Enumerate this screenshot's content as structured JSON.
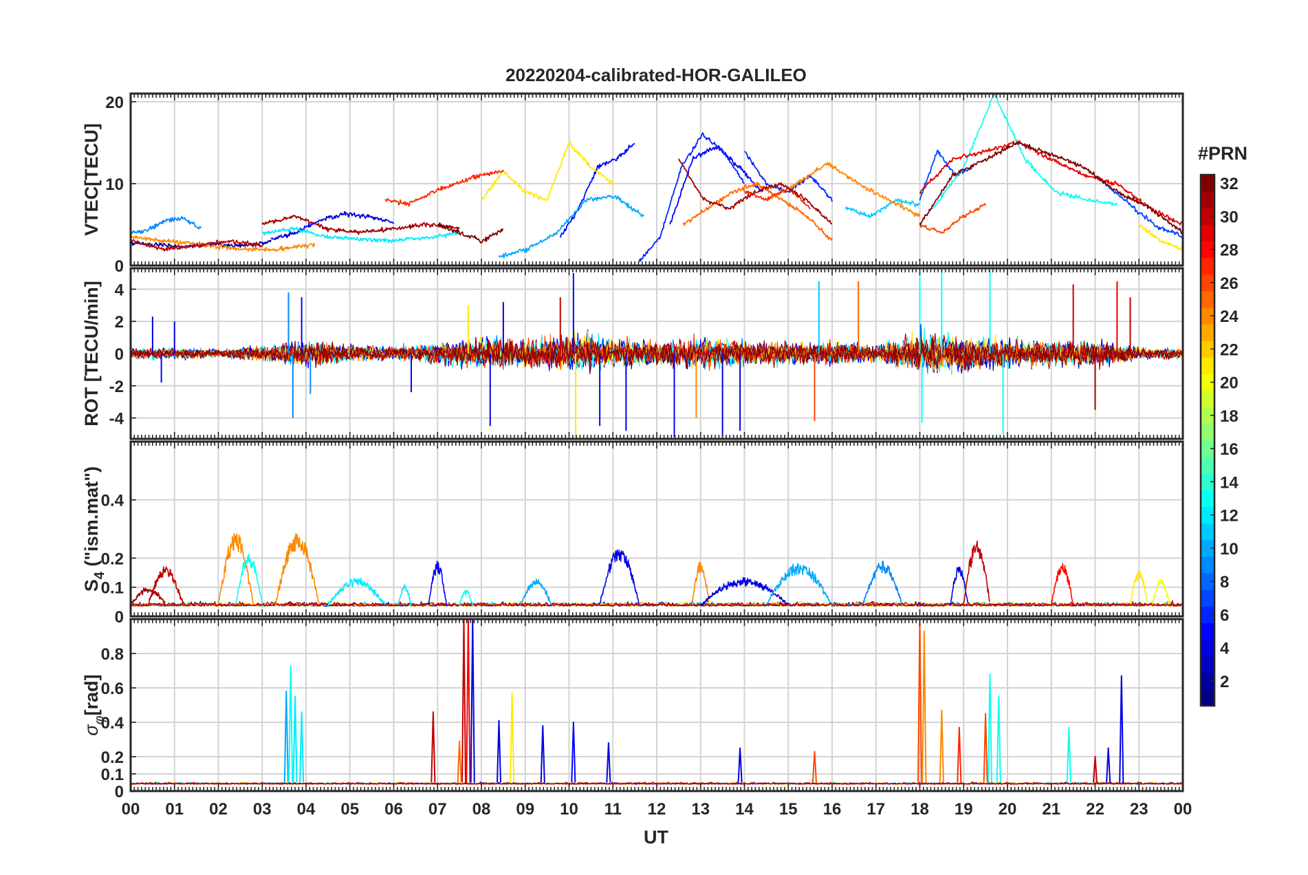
{
  "figure": {
    "title": "20220204-calibrated-HOR-GALILEO",
    "xlabel": "UT"
  },
  "chart_data": [
    {
      "type": "line",
      "id": "vtec",
      "ylabel": "VTEC[TECU]",
      "ylim": [
        0,
        21
      ],
      "yticks": [
        0,
        10,
        20
      ],
      "xlim": [
        0,
        24
      ],
      "xtick_labels": [
        "00",
        "01",
        "02",
        "03",
        "04",
        "05",
        "06",
        "07",
        "08",
        "09",
        "10",
        "11",
        "12",
        "13",
        "14",
        "15",
        "16",
        "17",
        "18",
        "19",
        "20",
        "21",
        "22",
        "23",
        "00"
      ],
      "color_by": "PRN",
      "series": [
        {
          "name": "PRN 2",
          "prn": 2,
          "start": 0.0,
          "end": 3.2,
          "values": [
            2.8,
            2.5,
            2.3,
            2.6,
            2.4,
            2.9
          ]
        },
        {
          "name": "PRN 4",
          "prn": 4,
          "start": 3.2,
          "end": 6.0,
          "values": [
            3.2,
            4.0,
            5.5,
            6.3,
            6.0,
            5.2
          ]
        },
        {
          "name": "PRN 5",
          "prn": 5,
          "start": 9.8,
          "end": 11.5,
          "values": [
            3.5,
            7.0,
            12.0,
            13.0,
            15.0
          ]
        },
        {
          "name": "PRN 5",
          "prn": 5,
          "start": 12.3,
          "end": 14.4,
          "values": [
            5.0,
            13.0,
            14.5,
            12.0,
            9.0
          ]
        },
        {
          "name": "PRN 6",
          "prn": 6,
          "start": 11.6,
          "end": 14.0,
          "values": [
            0.5,
            3.5,
            12.0,
            16.0,
            14.0,
            10.0
          ]
        },
        {
          "name": "PRN 6",
          "prn": 6,
          "start": 14.0,
          "end": 16.0,
          "values": [
            14.0,
            10.0,
            9.0,
            11.0,
            8.0
          ]
        },
        {
          "name": "PRN 7",
          "prn": 7,
          "start": 18.0,
          "end": 19.2,
          "values": [
            8.0,
            14.0,
            11.0,
            12.0
          ]
        },
        {
          "name": "PRN 7",
          "prn": 7,
          "start": 22.0,
          "end": 24.0,
          "values": [
            11.0,
            8.0,
            5.0,
            3.5
          ]
        },
        {
          "name": "PRN 9",
          "prn": 9,
          "start": 0.0,
          "end": 1.6,
          "values": [
            4.0,
            4.3,
            5.5,
            5.8,
            4.5
          ]
        },
        {
          "name": "PRN 10",
          "prn": 10,
          "start": 8.4,
          "end": 11.7,
          "values": [
            1.0,
            2.0,
            4.0,
            8.0,
            8.5,
            6.0
          ]
        },
        {
          "name": "PRN 11",
          "prn": 11,
          "start": 16.3,
          "end": 18.0,
          "values": [
            7.0,
            6.0,
            8.0,
            7.5
          ]
        },
        {
          "name": "PRN 12",
          "prn": 12,
          "start": 3.0,
          "end": 7.5,
          "values": [
            4.0,
            4.5,
            3.5,
            3.2,
            3.0,
            3.4,
            4.0
          ]
        },
        {
          "name": "PRN 13",
          "prn": 13,
          "start": 18.3,
          "end": 22.5,
          "values": [
            7.0,
            12.0,
            21.0,
            13.0,
            9.0,
            8.0,
            7.5
          ]
        },
        {
          "name": "PRN 21",
          "prn": 21,
          "start": 8.0,
          "end": 11.0,
          "values": [
            8.0,
            11.5,
            9.0,
            8.0,
            15.0,
            12.0,
            10.0
          ]
        },
        {
          "name": "PRN 21",
          "prn": 21,
          "start": 23.0,
          "end": 24.0,
          "values": [
            5.0,
            3.0,
            2.0
          ]
        },
        {
          "name": "PRN 24",
          "prn": 24,
          "start": 0.0,
          "end": 4.2,
          "values": [
            3.5,
            3.0,
            2.5,
            2.0,
            2.0,
            2.5
          ]
        },
        {
          "name": "PRN 24",
          "prn": 24,
          "start": 14.5,
          "end": 18.0,
          "values": [
            8.0,
            10.0,
            12.5,
            10.0,
            8.0,
            6.0
          ]
        },
        {
          "name": "PRN 25",
          "prn": 25,
          "start": 12.6,
          "end": 16.0,
          "values": [
            5.0,
            7.0,
            9.0,
            10.0,
            8.0,
            6.0,
            3.0
          ]
        },
        {
          "name": "PRN 26",
          "prn": 26,
          "start": 18.0,
          "end": 19.5,
          "values": [
            5.0,
            4.0,
            6.0,
            7.5
          ]
        },
        {
          "name": "PRN 27",
          "prn": 27,
          "start": 5.8,
          "end": 8.5,
          "values": [
            8.0,
            7.5,
            9.0,
            10.0,
            11.0,
            11.5
          ]
        },
        {
          "name": "PRN 27",
          "prn": 27,
          "start": 14.0,
          "end": 15.5,
          "values": [
            9.0,
            8.0,
            9.5,
            7.0
          ]
        },
        {
          "name": "PRN 29",
          "prn": 29,
          "start": 18.0,
          "end": 24.0,
          "values": [
            9.0,
            13.0,
            14.0,
            15.0,
            13.0,
            11.0,
            10.0,
            7.0,
            5.0
          ]
        },
        {
          "name": "PRN 30",
          "prn": 30,
          "start": 0.0,
          "end": 3.0,
          "values": [
            3.0,
            2.0,
            2.4,
            3.0,
            2.5
          ]
        },
        {
          "name": "PRN 31",
          "prn": 31,
          "start": 3.0,
          "end": 7.5,
          "values": [
            5.0,
            6.0,
            4.5,
            4.0,
            4.5,
            5.0,
            4.5
          ]
        },
        {
          "name": "PRN 31",
          "prn": 31,
          "start": 12.5,
          "end": 16.0,
          "values": [
            13.0,
            8.0,
            7.0,
            9.0,
            10.0,
            8.0,
            5.0
          ]
        },
        {
          "name": "PRN 32",
          "prn": 32,
          "start": 7.0,
          "end": 8.5,
          "values": [
            5.0,
            4.0,
            3.0,
            4.5
          ]
        },
        {
          "name": "PRN 32",
          "prn": 32,
          "start": 18.0,
          "end": 24.0,
          "values": [
            5.0,
            11.0,
            13.0,
            15.0,
            13.5,
            12.0,
            9.0,
            7.0,
            4.0
          ]
        }
      ]
    },
    {
      "type": "line",
      "id": "rot",
      "ylabel": "ROT [TECU/min]",
      "ylim": [
        -5.3,
        5.3
      ],
      "yticks": [
        -4,
        -2,
        0,
        2,
        4
      ],
      "xlim": [
        0,
        24
      ],
      "color_by": "PRN",
      "note": "dense per-epoch noise around 0; typical |ROT| envelope by hour",
      "envelope_by_hour": [
        0.6,
        0.7,
        0.5,
        0.9,
        1.6,
        1.0,
        0.9,
        1.2,
        1.8,
        1.7,
        2.2,
        1.8,
        1.5,
        1.8,
        1.5,
        1.3,
        1.4,
        0.9,
        2.5,
        2.0,
        1.8,
        1.5,
        1.6,
        0.7,
        0.6
      ],
      "spikes": [
        {
          "x": 0.5,
          "value": 2.3,
          "prn": 4
        },
        {
          "x": 0.7,
          "value": -1.8,
          "prn": 5
        },
        {
          "x": 1.0,
          "value": 2.0,
          "prn": 4
        },
        {
          "x": 3.6,
          "value": 3.8,
          "prn": 9
        },
        {
          "x": 3.7,
          "value": -4.0,
          "prn": 9
        },
        {
          "x": 3.9,
          "value": 3.5,
          "prn": 5
        },
        {
          "x": 4.1,
          "value": -2.5,
          "prn": 9
        },
        {
          "x": 6.4,
          "value": -2.4,
          "prn": 5
        },
        {
          "x": 7.7,
          "value": 3.0,
          "prn": 21
        },
        {
          "x": 8.2,
          "value": -4.5,
          "prn": 4
        },
        {
          "x": 8.5,
          "value": 3.2,
          "prn": 4
        },
        {
          "x": 9.8,
          "value": 3.5,
          "prn": 30
        },
        {
          "x": 10.1,
          "value": 5.0,
          "prn": 5
        },
        {
          "x": 10.15,
          "value": -5.2,
          "prn": 21
        },
        {
          "x": 10.7,
          "value": -4.5,
          "prn": 5
        },
        {
          "x": 11.3,
          "value": -4.8,
          "prn": 4
        },
        {
          "x": 12.4,
          "value": -5.2,
          "prn": 5
        },
        {
          "x": 12.9,
          "value": -4.0,
          "prn": 24
        },
        {
          "x": 13.5,
          "value": -5.2,
          "prn": 4
        },
        {
          "x": 13.9,
          "value": -4.8,
          "prn": 4
        },
        {
          "x": 15.6,
          "value": -4.2,
          "prn": 26
        },
        {
          "x": 15.7,
          "value": 4.5,
          "prn": 11
        },
        {
          "x": 16.6,
          "value": 4.5,
          "prn": 25
        },
        {
          "x": 18.0,
          "value": 5.2,
          "prn": 13
        },
        {
          "x": 18.05,
          "value": -4.3,
          "prn": 13
        },
        {
          "x": 18.5,
          "value": 5.2,
          "prn": 13
        },
        {
          "x": 19.6,
          "value": 5.2,
          "prn": 13
        },
        {
          "x": 19.9,
          "value": -5.0,
          "prn": 13
        },
        {
          "x": 21.5,
          "value": 4.3,
          "prn": 30
        },
        {
          "x": 22.0,
          "value": -3.5,
          "prn": 31
        },
        {
          "x": 22.5,
          "value": 4.5,
          "prn": 29
        },
        {
          "x": 22.8,
          "value": 3.5,
          "prn": 30
        }
      ]
    },
    {
      "type": "line",
      "id": "s4",
      "ylabel": "S4 (\"ism.mat\")",
      "ylim": [
        0,
        0.6
      ],
      "yticks": [
        0,
        0.1,
        0.2,
        0.4
      ],
      "ytick_labels": [
        "0",
        "0.1",
        "0.2",
        "0.4"
      ],
      "xlim": [
        0,
        24
      ],
      "color_by": "PRN",
      "note": "baseline around 0.02-0.05; bumps listed as [start_hr, end_hr, peak, prn]",
      "bumps": [
        [
          0.4,
          1.2,
          0.17,
          30
        ],
        [
          0.0,
          0.8,
          0.1,
          31
        ],
        [
          2.0,
          2.8,
          0.29,
          24
        ],
        [
          2.4,
          3.0,
          0.22,
          13
        ],
        [
          3.3,
          4.3,
          0.29,
          24
        ],
        [
          4.5,
          5.8,
          0.13,
          12
        ],
        [
          6.1,
          6.4,
          0.11,
          12
        ],
        [
          6.8,
          7.2,
          0.19,
          5
        ],
        [
          7.5,
          7.8,
          0.09,
          13
        ],
        [
          8.9,
          9.6,
          0.13,
          10
        ],
        [
          10.7,
          11.6,
          0.24,
          4
        ],
        [
          12.8,
          13.2,
          0.19,
          24
        ],
        [
          13.0,
          15.0,
          0.13,
          4
        ],
        [
          14.5,
          16.0,
          0.18,
          10
        ],
        [
          16.7,
          17.6,
          0.19,
          9
        ],
        [
          18.7,
          19.1,
          0.18,
          4
        ],
        [
          19.0,
          19.6,
          0.27,
          30
        ],
        [
          21.0,
          21.5,
          0.19,
          28
        ],
        [
          22.8,
          23.2,
          0.16,
          21
        ],
        [
          23.3,
          23.7,
          0.13,
          20
        ]
      ]
    },
    {
      "type": "line",
      "id": "sigma_phi",
      "ylabel": "σ_φ [rad]",
      "ylim": [
        0,
        1.0
      ],
      "yticks": [
        0,
        0.1,
        0.2,
        0.4,
        0.6,
        0.8
      ],
      "ytick_labels": [
        "0",
        "0.1",
        "0.2",
        "0.4",
        "0.6",
        "0.8"
      ],
      "xlim": [
        0,
        24
      ],
      "color_by": "PRN",
      "note": "baseline around 0.03-0.05; spikes as [x_hr, peak, prn]",
      "spikes": [
        [
          3.55,
          0.58,
          10
        ],
        [
          3.65,
          0.73,
          13
        ],
        [
          3.75,
          0.55,
          12
        ],
        [
          3.9,
          0.46,
          12
        ],
        [
          6.9,
          0.46,
          30
        ],
        [
          7.6,
          1.0,
          30
        ],
        [
          7.7,
          1.0,
          28
        ],
        [
          7.8,
          1.0,
          4
        ],
        [
          7.5,
          0.29,
          25
        ],
        [
          8.7,
          0.57,
          21
        ],
        [
          8.4,
          0.41,
          4
        ],
        [
          9.4,
          0.38,
          4
        ],
        [
          10.1,
          0.4,
          5
        ],
        [
          10.9,
          0.28,
          4
        ],
        [
          13.9,
          0.25,
          4
        ],
        [
          15.6,
          0.23,
          26
        ],
        [
          18.0,
          1.0,
          26
        ],
        [
          18.1,
          0.93,
          24
        ],
        [
          18.5,
          0.47,
          24
        ],
        [
          18.9,
          0.37,
          27
        ],
        [
          19.6,
          0.68,
          13
        ],
        [
          19.8,
          0.55,
          13
        ],
        [
          19.5,
          0.45,
          26
        ],
        [
          21.4,
          0.37,
          13
        ],
        [
          22.0,
          0.2,
          30
        ],
        [
          22.3,
          0.25,
          4
        ],
        [
          22.6,
          0.67,
          4
        ]
      ]
    }
  ],
  "colorbar": {
    "title": "#PRN",
    "range": [
      1,
      32
    ],
    "ticks": [
      2,
      4,
      6,
      8,
      10,
      12,
      14,
      16,
      18,
      20,
      22,
      24,
      26,
      28,
      30,
      32
    ]
  }
}
